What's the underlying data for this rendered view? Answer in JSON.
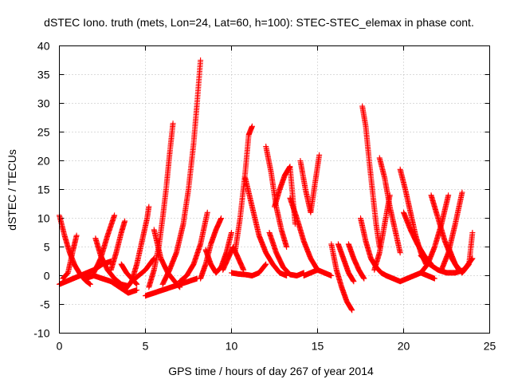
{
  "chart_data": {
    "type": "scatter",
    "title": "dSTEC Iono. truth (mets, Lon=24, Lat=60, h=100): STEC-STEC_elemax in phase cont.",
    "xlabel": "GPS time / hours of day 267 of year 2014",
    "ylabel": "dSTEC  / TECUs",
    "xlim": [
      0,
      25
    ],
    "ylim": [
      -10,
      40
    ],
    "x_ticks": [
      0,
      5,
      10,
      15,
      20,
      25
    ],
    "y_ticks": [
      -10,
      -5,
      0,
      5,
      10,
      15,
      20,
      25,
      30,
      35,
      40
    ],
    "x_tick_labels": [
      "0",
      "5",
      "10",
      "15",
      "20",
      "25"
    ],
    "y_tick_labels": [
      "-10",
      "-5",
      "0",
      "5",
      "10",
      "15",
      "20",
      "25",
      "30",
      "35",
      "40"
    ],
    "grid": true,
    "marker": "plus",
    "color": "#ff0000",
    "series": [
      {
        "x": [
          0.0,
          0.3,
          0.6,
          0.9,
          1.2,
          1.5,
          1.8
        ],
        "y": [
          10.5,
          7.0,
          4.0,
          1.8,
          0.3,
          -0.8,
          -1.5
        ]
      },
      {
        "x": [
          0.2,
          0.5,
          0.8,
          1.0
        ],
        "y": [
          -0.5,
          0.5,
          4.5,
          7.0
        ]
      },
      {
        "x": [
          0.0,
          0.4,
          0.8,
          1.2,
          1.6,
          2.0,
          2.5,
          3.0
        ],
        "y": [
          -1.5,
          -1.0,
          -0.5,
          0.0,
          0.5,
          1.0,
          2.0,
          2.5
        ]
      },
      {
        "x": [
          2.1,
          2.4,
          2.8,
          3.2,
          3.6,
          4.0
        ],
        "y": [
          6.5,
          3.5,
          1.0,
          -0.5,
          -1.5,
          -1.8
        ]
      },
      {
        "x": [
          2.0,
          2.4,
          2.8,
          3.2
        ],
        "y": [
          0.5,
          3.0,
          7.0,
          10.5
        ]
      },
      {
        "x": [
          3.0,
          3.3,
          3.6,
          3.8
        ],
        "y": [
          1.0,
          4.0,
          7.5,
          9.5
        ]
      },
      {
        "x": [
          1.5,
          2.0,
          2.5,
          3.0,
          3.5,
          4.0,
          4.5
        ],
        "y": [
          -0.5,
          0.0,
          -0.5,
          -1.0,
          -2.0,
          -3.0,
          -2.5
        ]
      },
      {
        "x": [
          3.6,
          3.9,
          4.2,
          4.5
        ],
        "y": [
          2.0,
          0.5,
          -0.5,
          -1.5
        ]
      },
      {
        "x": [
          4.2,
          4.5,
          4.8,
          5.1,
          5.2
        ],
        "y": [
          -1.0,
          2.0,
          6.0,
          10.0,
          12.0
        ]
      },
      {
        "x": [
          3.8,
          4.2,
          4.6,
          5.0,
          5.5
        ],
        "y": [
          -2.5,
          -1.0,
          0.0,
          1.0,
          3.0
        ]
      },
      {
        "x": [
          5.0,
          5.5,
          6.0,
          6.5,
          7.0,
          7.5,
          8.0
        ],
        "y": [
          -3.5,
          -3.0,
          -2.5,
          -2.0,
          -1.5,
          -1.0,
          -0.5
        ]
      },
      {
        "x": [
          5.2,
          5.5,
          5.8,
          6.0,
          6.2,
          6.4,
          6.6
        ],
        "y": [
          -2.0,
          1.0,
          5.5,
          10.0,
          15.0,
          21.0,
          26.5
        ]
      },
      {
        "x": [
          5.5,
          5.9,
          6.3,
          6.7,
          7.0
        ],
        "y": [
          8.0,
          3.0,
          0.5,
          -1.0,
          -2.0
        ]
      },
      {
        "x": [
          6.0,
          6.4,
          6.8,
          7.2,
          7.5,
          7.8,
          8.0,
          8.2
        ],
        "y": [
          -1.5,
          1.0,
          4.0,
          9.0,
          15.0,
          23.0,
          30.0,
          37.5
        ]
      },
      {
        "x": [
          7.0,
          7.4,
          7.8,
          8.2,
          8.6
        ],
        "y": [
          -1.0,
          0.0,
          2.0,
          5.5,
          11.0
        ]
      },
      {
        "x": [
          8.2,
          8.5,
          8.8,
          9.1,
          9.4
        ],
        "y": [
          -0.5,
          2.0,
          5.5,
          8.0,
          10.0
        ]
      },
      {
        "x": [
          8.5,
          8.8,
          9.1,
          9.4,
          9.7,
          10.0
        ],
        "y": [
          4.5,
          2.0,
          0.5,
          1.5,
          4.0,
          7.5
        ]
      },
      {
        "x": [
          9.5,
          9.8,
          10.1,
          10.4,
          10.7
        ],
        "y": [
          1.0,
          3.0,
          5.0,
          3.0,
          1.0
        ]
      },
      {
        "x": [
          10.0,
          10.4,
          10.8,
          11.2,
          11.6,
          12.0
        ],
        "y": [
          0.5,
          0.3,
          0.2,
          0.0,
          0.5,
          2.0
        ]
      },
      {
        "x": [
          10.2,
          10.5,
          10.8,
          11.0,
          11.2
        ],
        "y": [
          4.0,
          10.0,
          18.0,
          24.5,
          26.0
        ]
      },
      {
        "x": [
          10.8,
          11.2,
          11.6,
          12.0,
          12.4,
          12.8,
          13.2
        ],
        "y": [
          17.0,
          12.0,
          7.0,
          4.0,
          2.0,
          0.5,
          0.0
        ]
      },
      {
        "x": [
          12.0,
          12.3,
          12.6,
          12.9,
          13.2
        ],
        "y": [
          22.5,
          18.0,
          12.0,
          8.0,
          5.0
        ]
      },
      {
        "x": [
          12.5,
          12.8,
          13.1,
          13.4,
          13.7
        ],
        "y": [
          12.0,
          15.0,
          17.5,
          19.0,
          9.0
        ]
      },
      {
        "x": [
          12.2,
          12.6,
          13.0,
          13.4,
          13.8,
          14.2
        ],
        "y": [
          7.5,
          4.0,
          1.5,
          0.2,
          0.0,
          0.5
        ]
      },
      {
        "x": [
          13.4,
          13.8,
          14.2,
          14.6,
          15.0
        ],
        "y": [
          13.5,
          10.0,
          6.0,
          3.0,
          1.0
        ]
      },
      {
        "x": [
          14.0,
          14.3,
          14.6,
          14.9,
          15.1
        ],
        "y": [
          20.0,
          15.0,
          11.0,
          17.0,
          21.0
        ]
      },
      {
        "x": [
          14.2,
          14.6,
          15.0,
          15.4,
          15.8
        ],
        "y": [
          0.0,
          0.5,
          1.0,
          0.5,
          0.0
        ]
      },
      {
        "x": [
          15.8,
          16.1,
          16.4,
          16.7,
          17.0
        ],
        "y": [
          5.5,
          1.0,
          -2.0,
          -4.5,
          -6.0
        ]
      },
      {
        "x": [
          16.2,
          16.5,
          16.8,
          17.1
        ],
        "y": [
          5.5,
          3.0,
          0.5,
          -1.0
        ]
      },
      {
        "x": [
          16.8,
          17.1,
          17.4,
          17.7
        ],
        "y": [
          5.5,
          3.0,
          1.0,
          -0.5
        ]
      },
      {
        "x": [
          17.6,
          17.8,
          18.0,
          18.2,
          18.4,
          18.6
        ],
        "y": [
          29.5,
          26.0,
          20.0,
          14.5,
          9.0,
          5.0
        ]
      },
      {
        "x": [
          17.5,
          17.8,
          18.1,
          18.4,
          18.7,
          19.0
        ],
        "y": [
          10.0,
          6.0,
          3.0,
          1.5,
          0.5,
          0.0
        ]
      },
      {
        "x": [
          18.6,
          18.9,
          19.2,
          19.5,
          19.8
        ],
        "y": [
          20.5,
          17.0,
          12.0,
          8.0,
          4.0
        ]
      },
      {
        "x": [
          18.3,
          18.6,
          18.9,
          19.2
        ],
        "y": [
          1.0,
          4.0,
          9.0,
          14.0
        ]
      },
      {
        "x": [
          19.0,
          19.4,
          19.8,
          20.2,
          20.6,
          21.0,
          21.4,
          21.8
        ],
        "y": [
          0.0,
          -0.5,
          -1.0,
          -0.5,
          0.0,
          0.5,
          0.0,
          -0.5
        ]
      },
      {
        "x": [
          19.8,
          20.1,
          20.4,
          20.7,
          21.0,
          21.3
        ],
        "y": [
          18.5,
          15.0,
          11.0,
          7.0,
          4.0,
          2.0
        ]
      },
      {
        "x": [
          20.0,
          20.4,
          20.8,
          21.2,
          21.6
        ],
        "y": [
          11.0,
          8.0,
          5.5,
          3.5,
          2.0
        ]
      },
      {
        "x": [
          21.0,
          21.4,
          21.8,
          22.2,
          22.6
        ],
        "y": [
          0.5,
          2.0,
          5.0,
          9.0,
          14.0
        ]
      },
      {
        "x": [
          21.6,
          22.0,
          22.4,
          22.8,
          23.2
        ],
        "y": [
          14.0,
          10.0,
          6.0,
          3.0,
          1.0
        ]
      },
      {
        "x": [
          22.2,
          22.6,
          23.0,
          23.4
        ],
        "y": [
          1.0,
          4.0,
          9.0,
          14.5
        ]
      },
      {
        "x": [
          22.6,
          23.0,
          23.4,
          23.8,
          24.0
        ],
        "y": [
          5.0,
          2.0,
          0.5,
          2.0,
          7.5
        ]
      },
      {
        "x": [
          21.0,
          21.5,
          22.0,
          22.5,
          23.0,
          23.5,
          24.0
        ],
        "y": [
          3.5,
          2.0,
          1.0,
          0.5,
          0.5,
          1.0,
          3.0
        ]
      }
    ]
  }
}
